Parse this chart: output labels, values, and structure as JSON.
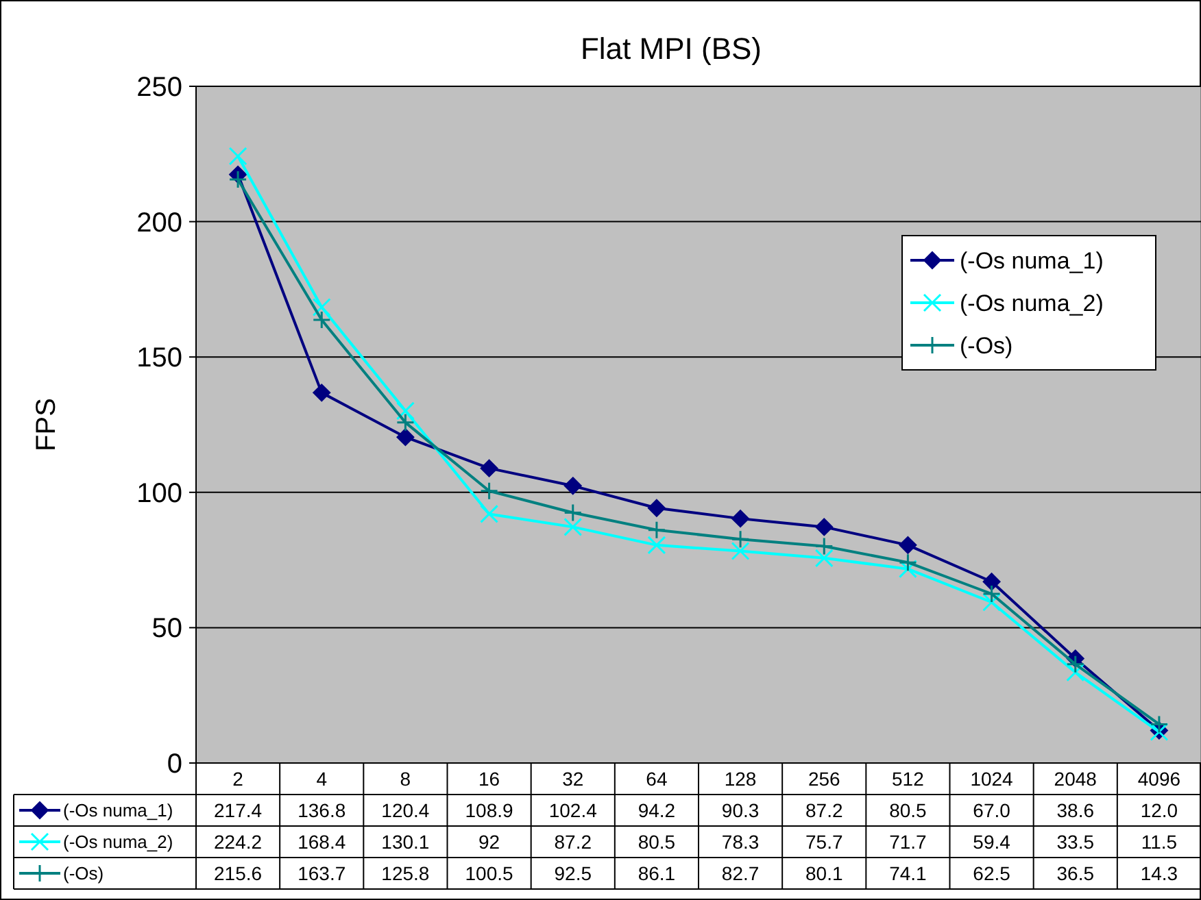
{
  "chart_data": {
    "type": "line",
    "title": "Flat MPI (BS)",
    "ylabel": "FPS",
    "categories": [
      "2",
      "4",
      "8",
      "16",
      "32",
      "64",
      "128",
      "256",
      "512",
      "1024",
      "2048",
      "4096"
    ],
    "series": [
      {
        "name": "(-Os numa_1)",
        "color": "#000080",
        "marker": "diamond",
        "values": [
          217.4,
          136.8,
          120.4,
          108.9,
          102.4,
          94.2,
          90.3,
          87.2,
          80.5,
          67.0,
          38.6,
          12.0
        ],
        "value_labels": [
          "217.4",
          "136.8",
          "120.4",
          "108.9",
          "102.4",
          "94.2",
          "90.3",
          "87.2",
          "80.5",
          "67.0",
          "38.6",
          "12.0"
        ]
      },
      {
        "name": "(-Os numa_2)",
        "color": "#00ffff",
        "marker": "cross",
        "values": [
          224.2,
          168.4,
          130.1,
          92,
          87.2,
          80.5,
          78.3,
          75.7,
          71.7,
          59.4,
          33.5,
          11.5
        ],
        "value_labels": [
          "224.2",
          "168.4",
          "130.1",
          "92",
          "87.2",
          "80.5",
          "78.3",
          "75.7",
          "71.7",
          "59.4",
          "33.5",
          "11.5"
        ]
      },
      {
        "name": "(-Os)",
        "color": "#008080",
        "marker": "plus",
        "values": [
          215.6,
          163.7,
          125.8,
          100.5,
          92.5,
          86.1,
          82.7,
          80.1,
          74.1,
          62.5,
          36.5,
          14.3
        ],
        "value_labels": [
          "215.6",
          "163.7",
          "125.8",
          "100.5",
          "92.5",
          "86.1",
          "82.7",
          "80.1",
          "74.1",
          "62.5",
          "36.5",
          "14.3"
        ]
      }
    ],
    "ylim": [
      0,
      250
    ],
    "yticks": [
      0,
      50,
      100,
      150,
      200,
      250
    ],
    "grid": "y",
    "legend": "right"
  }
}
